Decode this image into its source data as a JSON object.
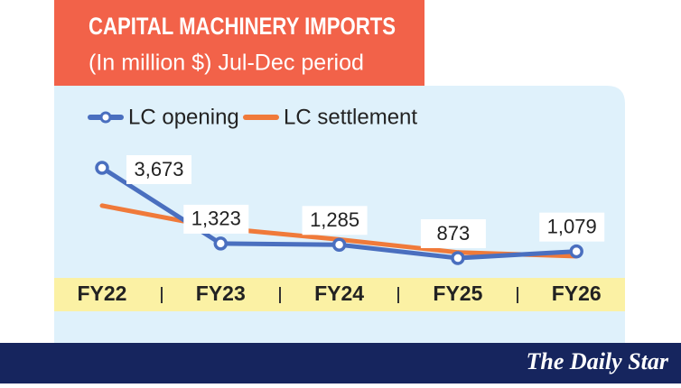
{
  "chart_data": {
    "type": "line",
    "title": "CAPITAL MACHINERY IMPORTS",
    "subtitle": "(In million $) Jul-Dec period",
    "categories": [
      "FY22",
      "FY23",
      "FY24",
      "FY25",
      "FY26"
    ],
    "series": [
      {
        "name": "LC opening",
        "color": "#4a6fbf",
        "values": [
          3673,
          1323,
          1285,
          873,
          1079
        ],
        "value_labels": [
          "3,673",
          "1,323",
          "1,285",
          "873",
          "1,079"
        ]
      },
      {
        "name": "LC settlement",
        "color": "#f07a3a",
        "values": [
          2500,
          1800,
          1450,
          1050,
          930
        ]
      }
    ]
  },
  "footer": {
    "brand": "The Daily Star"
  }
}
